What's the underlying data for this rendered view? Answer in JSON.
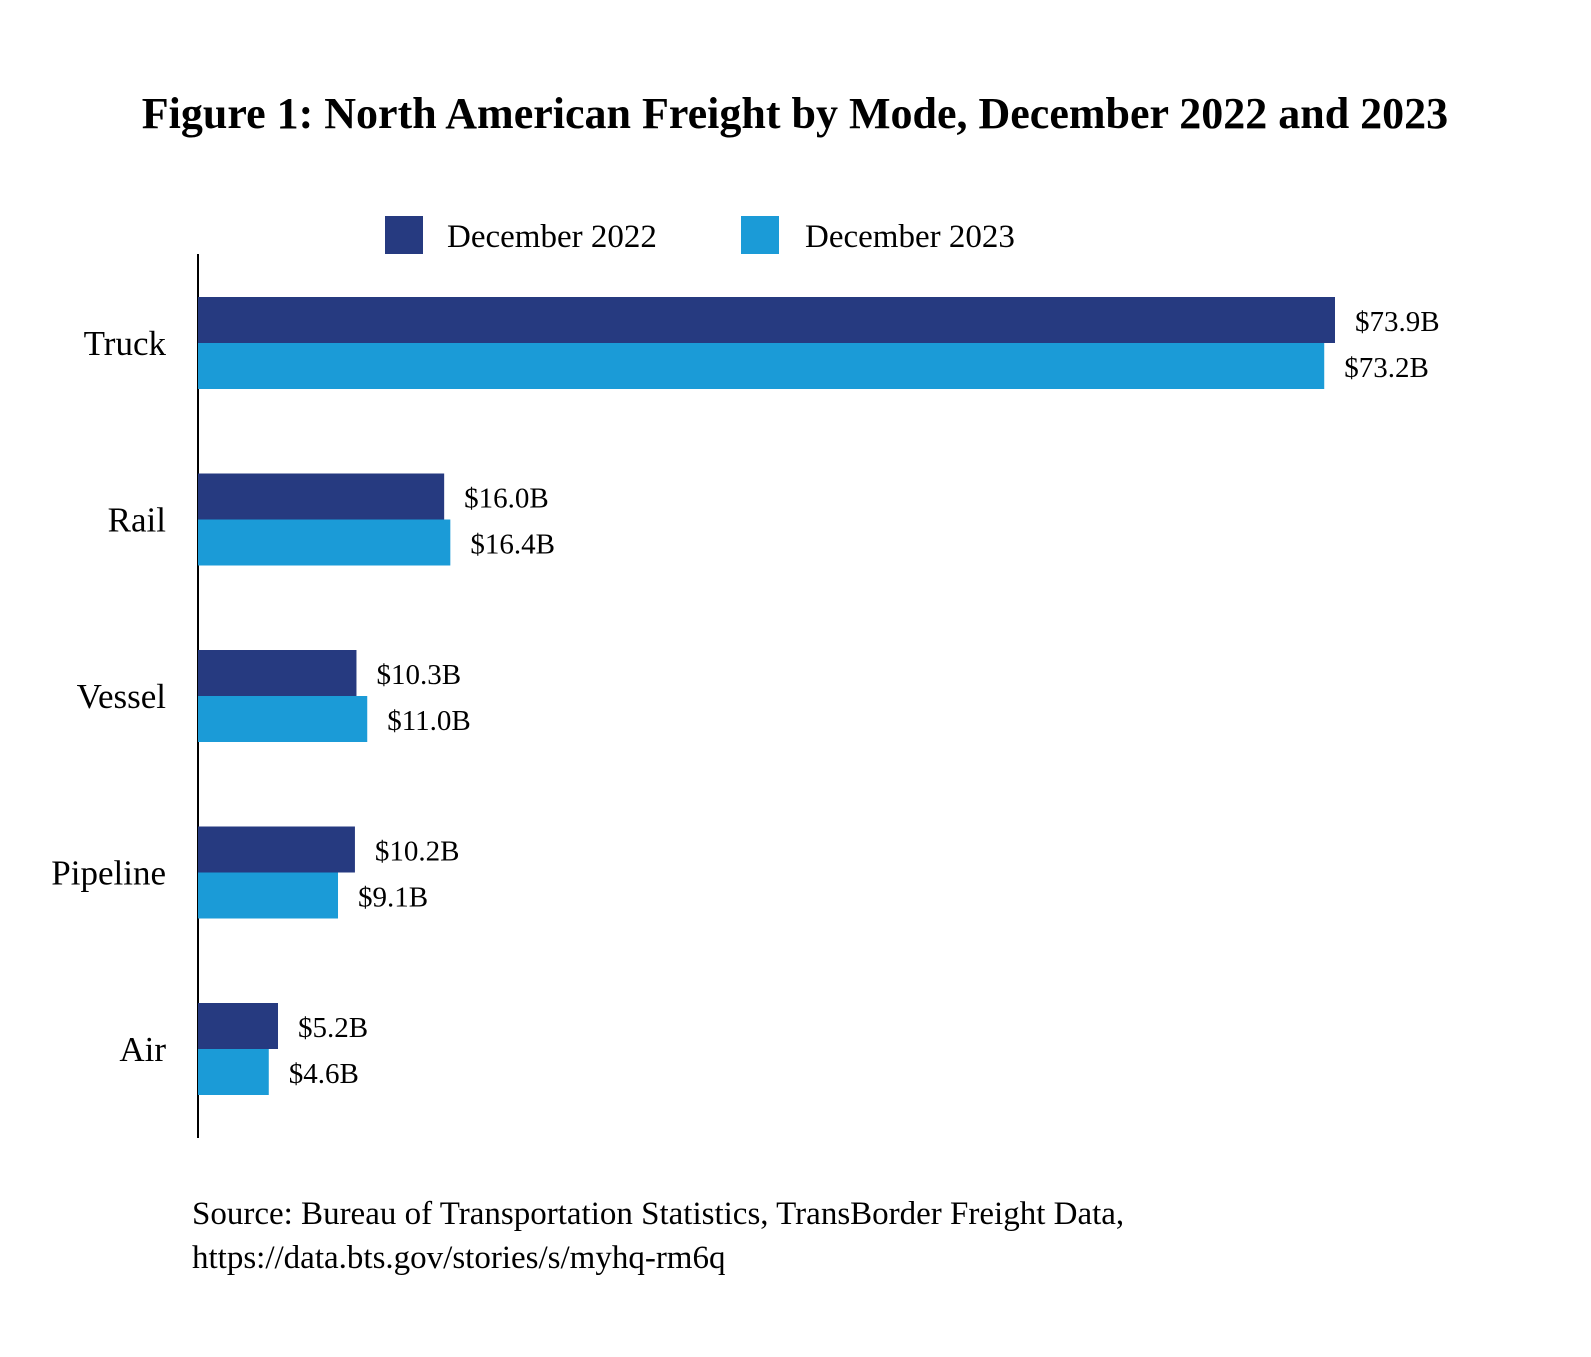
{
  "chart_data": {
    "type": "bar",
    "orientation": "horizontal",
    "title": "Figure 1: North American Freight by Mode, December 2022 and 2023",
    "categories": [
      "Truck",
      "Rail",
      "Vessel",
      "Pipeline",
      "Air"
    ],
    "series": [
      {
        "name": "December 2022",
        "color": "#263a80",
        "values": [
          73.9,
          16.0,
          10.3,
          10.2,
          5.2
        ],
        "labels": [
          "$73.9B",
          "$16.0B",
          "$10.3B",
          "$10.2B",
          "$5.2B"
        ]
      },
      {
        "name": "December 2023",
        "color": "#1b9bd7",
        "values": [
          73.2,
          16.4,
          11.0,
          9.1,
          4.6
        ],
        "labels": [
          "$73.2B",
          "$16.4B",
          "$11.0B",
          "$9.1B",
          "$4.6B"
        ]
      }
    ],
    "xlabel": "",
    "ylabel": "",
    "xlim": [
      0,
      73.9
    ],
    "grid": false,
    "legend": "top"
  },
  "source": {
    "line1": "Source: Bureau of Transportation Statistics, TransBorder Freight Data,",
    "line2": "https://data.bts.gov/stories/s/myhq-rm6q"
  }
}
